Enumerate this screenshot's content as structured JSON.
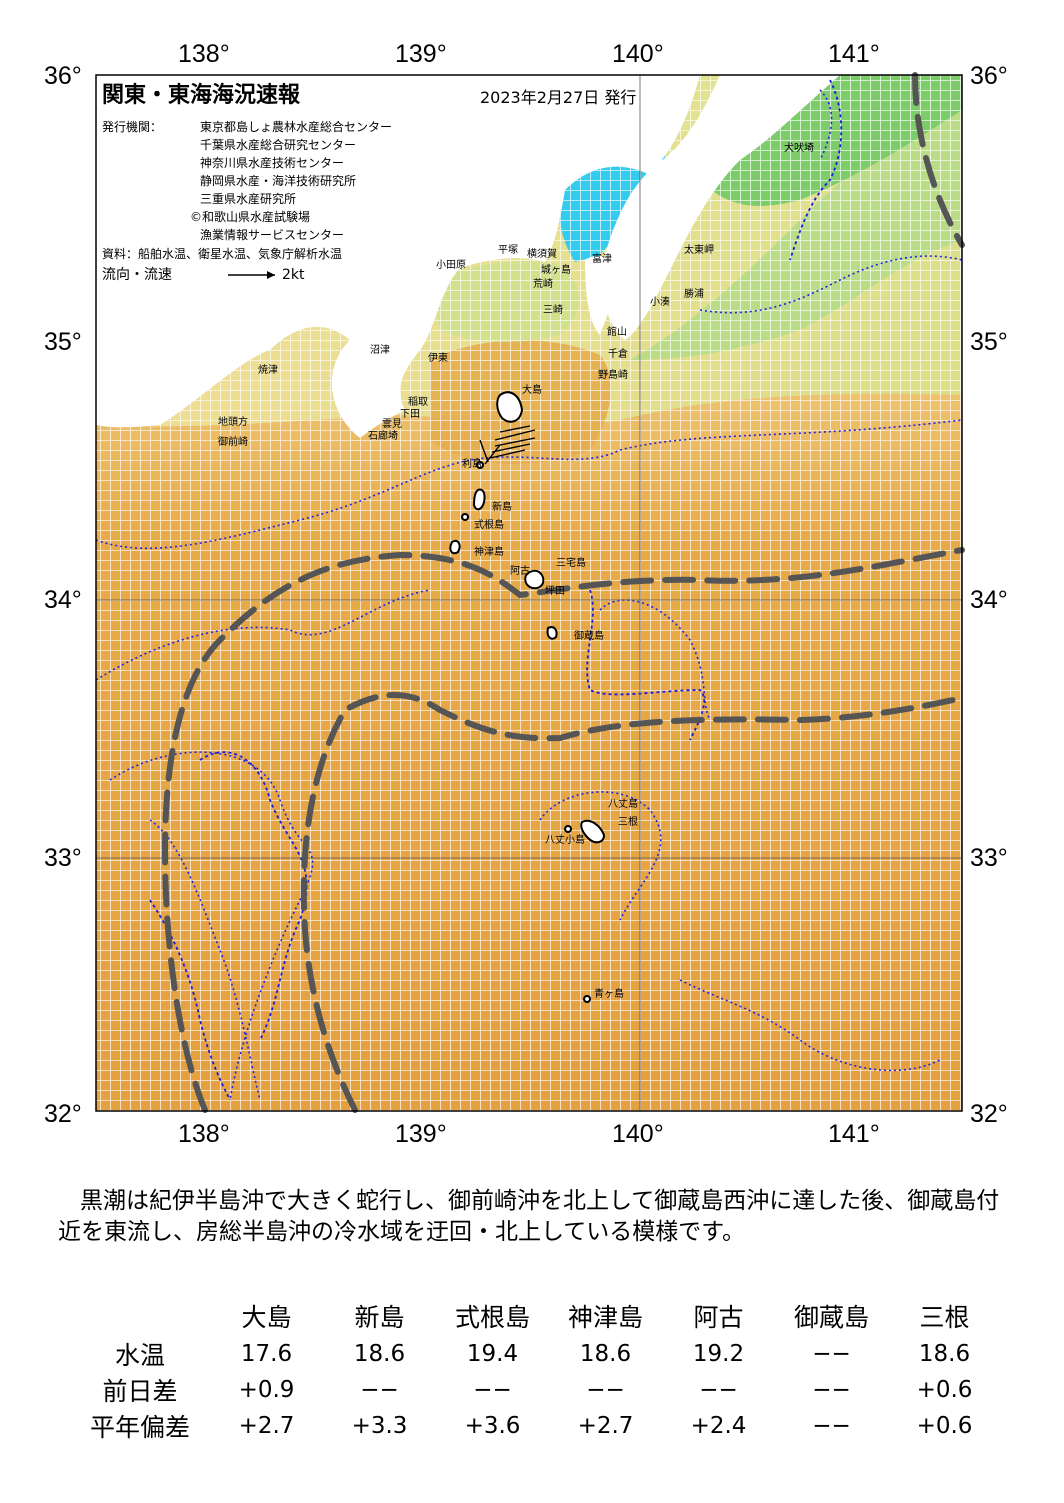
{
  "header": {
    "title": "関東・東海海況速報",
    "issue_date": "2023年2月27日 発行",
    "issuer_label": "発行機関：",
    "issuers": [
      "東京都島しょ農林水産総合センター",
      "千葉県水産総合研究センター",
      "神奈川県水産技術センター",
      "静岡県水産・海洋技術研究所",
      "三重県水産研究所",
      "©和歌山県水産試験場",
      "漁業情報サービスセンター"
    ],
    "data_source": "資料：船舶水温、衛星水温、気象庁解析水温",
    "flow_legend_label": "流向・流速",
    "flow_legend_speed": "2kt"
  },
  "axes": {
    "lon_labels": [
      "138°",
      "139°",
      "140°",
      "141°"
    ],
    "lat_labels": [
      "36°",
      "35°",
      "34°",
      "33°",
      "32°"
    ]
  },
  "places": {
    "inubozaki": "犬吠埼",
    "taitomisaki": "太東岬",
    "katsuura": "勝浦",
    "kominato": "小湊",
    "odawara": "小田原",
    "hiratsuka": "平塚",
    "yokosuka": "横須賀",
    "futtsu": "富津",
    "jogashima": "城ヶ島",
    "arasaki": "荒崎",
    "misaki": "三崎",
    "tateyama": "館山",
    "chikura": "千倉",
    "nojimazaki": "野島崎",
    "yaizu": "焼津",
    "numazu": "沼津",
    "ito": "伊東",
    "inatori": "稲取",
    "shimoda": "下田",
    "mera": "雲見",
    "irozaki": "石廊埼",
    "chikyumi": "地頭方",
    "omaezaki": "御前崎",
    "oshima": "大島",
    "toshima": "利島",
    "niijima": "新島",
    "shikinejima": "式根島",
    "kozushima": "神津島",
    "miyakejima": "三宅島",
    "ako": "阿古",
    "tsubota": "坪田",
    "mikurajima": "御蔵島",
    "hachijojima": "八丈島",
    "mitsune": "三根",
    "hachijokojima": "八丈小島",
    "aogashima": "青ヶ島"
  },
  "summary": "黒潮は紀伊半島沖で大きく蛇行し、御前崎沖を北上して御蔵島西沖に達した後、御蔵島付近を東流し、房総半島沖の冷水域を迂回・北上している模様です。",
  "table": {
    "columns": [
      "大島",
      "新島",
      "式根島",
      "神津島",
      "阿古",
      "御蔵島",
      "三根"
    ],
    "rows": [
      {
        "label": "水温",
        "values": [
          "17.6",
          "18.6",
          "19.4",
          "18.6",
          "19.2",
          "−−",
          "18.6"
        ]
      },
      {
        "label": "前日差",
        "values": [
          "+0.9",
          "−−",
          "−−",
          "−−",
          "−−",
          "−−",
          "+0.6"
        ]
      },
      {
        "label": "平年偏差",
        "values": [
          "+2.7",
          "+3.3",
          "+3.6",
          "+2.7",
          "+2.4",
          "−−",
          "+0.6"
        ]
      }
    ]
  },
  "colors": {
    "warm": "#e8a944",
    "mild": "#f0d37a",
    "cool": "#a8d878",
    "cold": "#33ccee",
    "land": "#ffffff",
    "kuroshio_axis": "#555555",
    "isotherm": "#1a1adc"
  }
}
